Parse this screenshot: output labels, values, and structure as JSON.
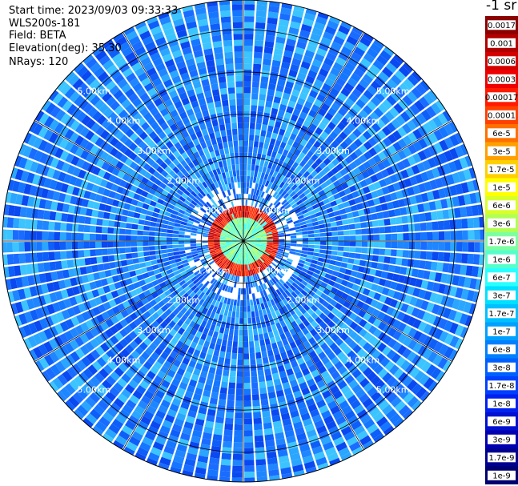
{
  "header": {
    "start_time": "Start time: 2023/09/03 09:33:33",
    "device": "WLS200s-181",
    "field": "Field: BETA",
    "elevation": "Elevation(deg): 35.30",
    "nrays": "NRays: 120",
    "unit": "-1 sr"
  },
  "chart_data": {
    "type": "heatmap",
    "subtype": "polar-ppi",
    "field": "BETA",
    "n_rays": 120,
    "elevation_deg": 35.3,
    "range_rings_km": [
      1,
      2,
      3,
      4,
      5
    ],
    "range_ring_labels": [
      "1.00km",
      "2.00km",
      "3.00km",
      "4.00km",
      "5.00km"
    ],
    "max_range_km": 5.7,
    "grid": true,
    "radial_lines": 12,
    "colorbar": {
      "position": "right",
      "labels": [
        "0.0017",
        "0.001",
        "0.0006",
        "0.0003",
        "0.00017",
        "0.0001",
        "6e-5",
        "3e-5",
        "1.7e-5",
        "1e-5",
        "6e-6",
        "3e-6",
        "1.7e-6",
        "1e-6",
        "6e-7",
        "3e-7",
        "1.7e-7",
        "1e-7",
        "6e-8",
        "3e-8",
        "1.7e-8",
        "1e-8",
        "6e-9",
        "3e-9",
        "1.7e-9",
        "1e-9"
      ],
      "colors": [
        "#8b0000",
        "#b00000",
        "#d40000",
        "#ee0000",
        "#ff1a00",
        "#ff4000",
        "#ff7000",
        "#ffa000",
        "#ffd000",
        "#ffff00",
        "#d8ff2a",
        "#b0ff55",
        "#7dffa0",
        "#55ffcc",
        "#2affff",
        "#00e0ff",
        "#00c0ff",
        "#00a0ff",
        "#0080ff",
        "#0060ff",
        "#0040ff",
        "#0020f0",
        "#0010d0",
        "#0000b0",
        "#000090",
        "#000070"
      ]
    },
    "pattern": {
      "near_field_km": 0.7,
      "near_field_values": "1e-6 to 3e-6",
      "aerosol_layer_ring_km": 0.72,
      "aerosol_layer_values": "0.0003 to 0.001",
      "far_field_values": "1e-8 to 1e-7"
    }
  }
}
